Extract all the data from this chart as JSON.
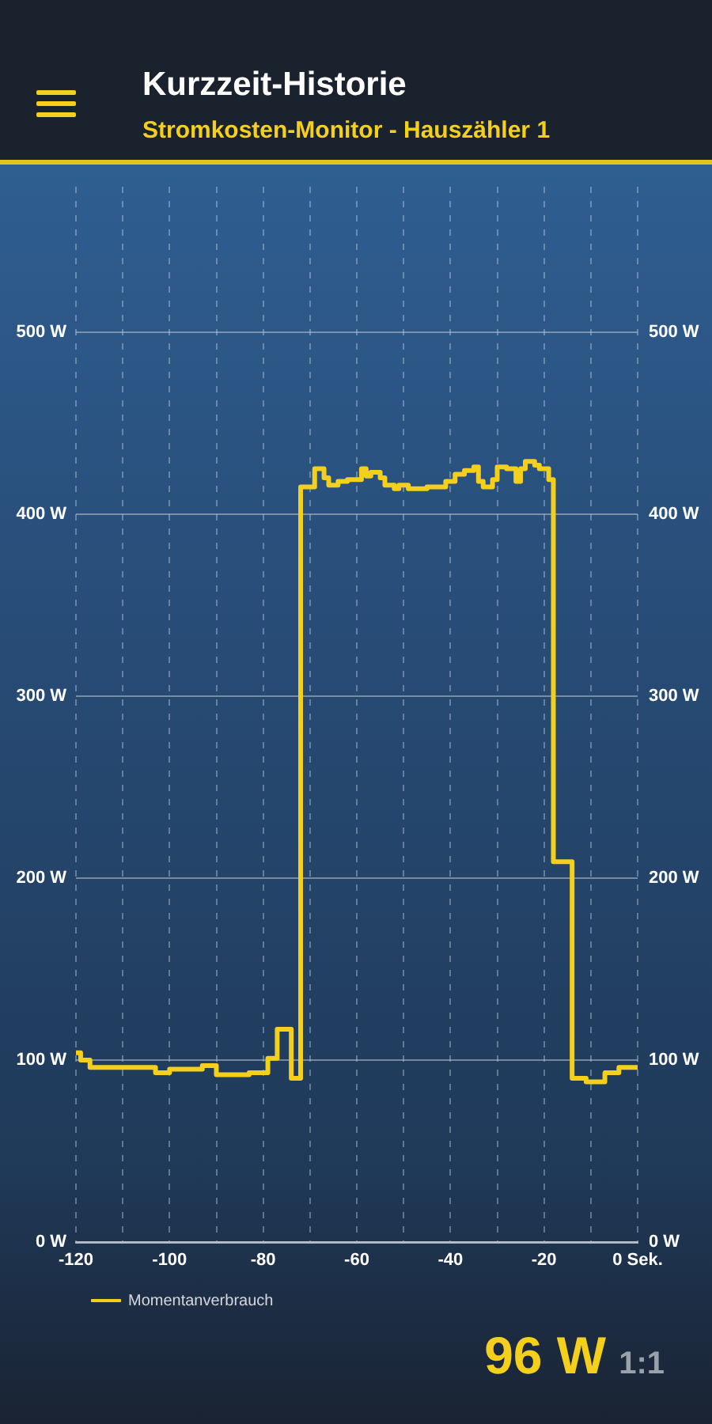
{
  "chart_data": {
    "type": "step",
    "title": "Kurzzeit-Historie",
    "subtitle": "Stromkosten-Monitor - Hauszähler 1",
    "x": [
      -120,
      -119,
      -117,
      -103,
      -100,
      -93,
      -90,
      -83,
      -79,
      -77,
      -74,
      -72,
      -69,
      -67,
      -66,
      -64,
      -62,
      -59,
      -58,
      -57,
      -55,
      -54,
      -52,
      -51,
      -49,
      -45,
      -41,
      -39,
      -37,
      -35,
      -34,
      -33,
      -31,
      -30,
      -28,
      -26,
      -25,
      -24,
      -22,
      -21,
      -19,
      -18,
      -14,
      -11,
      -7,
      -4,
      0
    ],
    "series": [
      {
        "name": "Momentanverbrauch",
        "color": "#f4d01c",
        "values": [
          104,
          100,
          96,
          93,
          95,
          97,
          92,
          93,
          101,
          117,
          90,
          415,
          425,
          420,
          416,
          418,
          419,
          425,
          421,
          423,
          420,
          416,
          414,
          416,
          414,
          415,
          418,
          422,
          424,
          426,
          418,
          415,
          419,
          426,
          425,
          418,
          425,
          429,
          427,
          425,
          419,
          209,
          90,
          88,
          93,
          96,
          96
        ]
      }
    ],
    "xlim": [
      -120,
      0
    ],
    "xticks": [
      -120,
      {
        "value": -110,
        "label": null
      },
      -100,
      {
        "value": -90,
        "label": null
      },
      -80,
      {
        "value": -70,
        "label": null
      },
      -60,
      {
        "value": -50,
        "label": null
      },
      -40,
      {
        "value": -30,
        "label": null
      },
      -20,
      {
        "value": -10,
        "label": null
      },
      {
        "value": 0,
        "label": "0 Sek."
      }
    ],
    "ylim": [
      0,
      580
    ],
    "yticks": [
      {
        "value": 0,
        "label": "0 W"
      },
      {
        "value": 100,
        "label": "100 W"
      },
      {
        "value": 200,
        "label": "200 W"
      },
      {
        "value": 300,
        "label": "300 W"
      },
      {
        "value": 400,
        "label": "400 W"
      },
      {
        "value": 500,
        "label": "500 W"
      }
    ],
    "y2lim": [
      0,
      580
    ],
    "y2ticks": [
      {
        "value": 0,
        "label": "0 W"
      },
      {
        "value": 100,
        "label": "100 W"
      },
      {
        "value": 200,
        "label": "200 W"
      },
      {
        "value": 300,
        "label": "300 W"
      },
      {
        "value": 400,
        "label": "400 W"
      },
      {
        "value": 500,
        "label": "500 W"
      }
    ],
    "grid": true,
    "legend": "bottom left",
    "marker": "none",
    "annotations": [
      "96 W",
      "1:1"
    ]
  }
}
